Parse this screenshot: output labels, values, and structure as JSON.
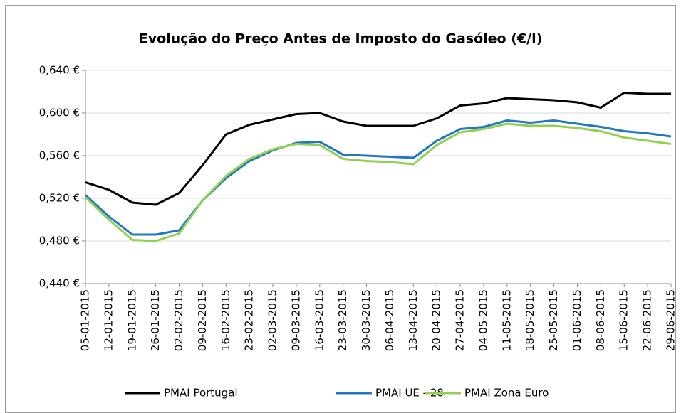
{
  "chart_data": {
    "type": "line",
    "title": "Evolução do Preço Antes de Imposto do Gasóleo (€/l)",
    "categories": [
      "05-01-2015",
      "12-01-2015",
      "19-01-2015",
      "26-01-2015",
      "02-02-2015",
      "09-02-2015",
      "16-02-2015",
      "23-02-2015",
      "02-03-2015",
      "09-03-2015",
      "16-03-2015",
      "23-03-2015",
      "30-03-2015",
      "06-04-2015",
      "13-04-2015",
      "20-04-2015",
      "27-04-2015",
      "04-05-2015",
      "11-05-2015",
      "18-05-2015",
      "25-05-2015",
      "01-06-2015",
      "08-06-2015",
      "15-06-2015",
      "22-06-2015",
      "29-06-2015"
    ],
    "series": [
      {
        "name": "PMAI Portugal",
        "color": "#000000",
        "values": [
          0.535,
          0.528,
          0.516,
          0.514,
          0.525,
          0.551,
          0.58,
          0.589,
          0.594,
          0.599,
          0.6,
          0.592,
          0.588,
          0.588,
          0.588,
          0.595,
          0.607,
          0.609,
          0.614,
          0.613,
          0.612,
          0.61,
          0.605,
          0.619,
          0.618,
          0.618
        ]
      },
      {
        "name": "PMAI UE - 28",
        "color": "#2277c0",
        "values": [
          0.523,
          0.503,
          0.486,
          0.486,
          0.49,
          0.518,
          0.539,
          0.555,
          0.565,
          0.572,
          0.573,
          0.561,
          0.56,
          0.559,
          0.558,
          0.574,
          0.585,
          0.587,
          0.593,
          0.591,
          0.593,
          0.59,
          0.587,
          0.583,
          0.581,
          0.578
        ]
      },
      {
        "name": "PMAI Zona Euro",
        "color": "#92d050",
        "values": [
          0.521,
          0.5,
          0.481,
          0.48,
          0.487,
          0.518,
          0.541,
          0.557,
          0.566,
          0.571,
          0.57,
          0.557,
          0.555,
          0.554,
          0.552,
          0.57,
          0.582,
          0.585,
          0.59,
          0.588,
          0.588,
          0.586,
          0.583,
          0.577,
          0.574,
          0.571
        ]
      }
    ],
    "ylim": [
      0.44,
      0.64
    ],
    "yticks": [
      {
        "value": 0.44,
        "label": "0,440 €"
      },
      {
        "value": 0.48,
        "label": "0,480 €"
      },
      {
        "value": 0.52,
        "label": "0,520 €"
      },
      {
        "value": 0.56,
        "label": "0,560 €"
      },
      {
        "value": 0.6,
        "label": "0,600 €"
      },
      {
        "value": 0.64,
        "label": "0,640 €"
      }
    ],
    "grid": true,
    "legend": "bottom"
  }
}
